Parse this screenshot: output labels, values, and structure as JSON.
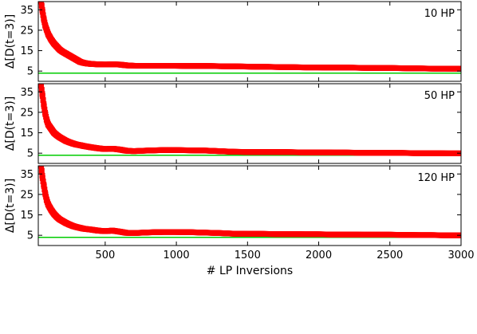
{
  "chart_data": [
    {
      "type": "scatter",
      "panel_label": "10 HP",
      "ylabel": "Δ[D(t=3)]",
      "xlabel": "",
      "xlim": [
        30,
        3000
      ],
      "ylim": [
        0,
        39
      ],
      "yticks": [
        5,
        15,
        25,
        35
      ],
      "xticks": [
        500,
        1000,
        1500,
        2000,
        2500,
        3000
      ],
      "show_x_tick_labels": false,
      "grid": false,
      "series": [
        {
          "color": "#ff0000",
          "x": [
            50,
            60,
            70,
            80,
            90,
            100,
            120,
            140,
            160,
            180,
            200,
            225,
            250,
            275,
            300,
            325,
            350,
            375,
            400,
            450,
            500,
            550,
            600,
            650,
            700,
            800,
            900,
            1000,
            1100,
            1200,
            1300,
            1400,
            1500,
            1600,
            1700,
            1800,
            1900,
            2000,
            2100,
            2200,
            2300,
            2400,
            2500,
            2600,
            2700,
            2800,
            2900,
            3000
          ],
          "y": [
            39,
            34,
            30,
            27,
            25,
            23,
            20.5,
            18.5,
            17,
            15.5,
            14.5,
            13.5,
            12.5,
            11.5,
            10.5,
            9.5,
            9,
            8.7,
            8.5,
            8.3,
            8.2,
            8.3,
            8.2,
            7.8,
            7.6,
            7.6,
            7.6,
            7.6,
            7.5,
            7.5,
            7.4,
            7.3,
            7.2,
            7.1,
            7.0,
            6.9,
            6.8,
            6.8,
            6.7,
            6.7,
            6.6,
            6.5,
            6.5,
            6.4,
            6.3,
            6.2,
            6.2,
            6.1
          ]
        },
        {
          "color": "#00cc00",
          "x": [
            30,
            3000
          ],
          "y": [
            4,
            4
          ]
        }
      ]
    },
    {
      "type": "scatter",
      "panel_label": "50 HP",
      "ylabel": "Δ[D(t=3)]",
      "xlabel": "",
      "xlim": [
        30,
        3000
      ],
      "ylim": [
        0,
        39
      ],
      "yticks": [
        5,
        15,
        25,
        35
      ],
      "xticks": [
        500,
        1000,
        1500,
        2000,
        2500,
        3000
      ],
      "show_x_tick_labels": false,
      "grid": false,
      "series": [
        {
          "color": "#ff0000",
          "x": [
            50,
            60,
            70,
            80,
            90,
            100,
            120,
            140,
            160,
            180,
            200,
            225,
            250,
            275,
            300,
            325,
            350,
            375,
            400,
            450,
            500,
            550,
            600,
            650,
            700,
            800,
            900,
            1000,
            1100,
            1200,
            1300,
            1400,
            1500,
            1600,
            1700,
            1800,
            1900,
            2000,
            2100,
            2200,
            2300,
            2400,
            2500,
            2600,
            2700,
            2800,
            2900,
            3000
          ],
          "y": [
            38,
            33,
            28,
            24,
            21,
            19,
            17,
            15,
            13.8,
            12.8,
            12,
            11,
            10.3,
            9.7,
            9.2,
            8.9,
            8.5,
            8.2,
            7.9,
            7.4,
            7.0,
            7.2,
            6.8,
            6.2,
            6.0,
            6.3,
            6.5,
            6.5,
            6.4,
            6.3,
            6.0,
            5.7,
            5.6,
            5.6,
            5.6,
            5.5,
            5.4,
            5.4,
            5.3,
            5.3,
            5.2,
            5.2,
            5.2,
            5.1,
            5.0,
            5.0,
            4.9,
            4.9
          ]
        },
        {
          "color": "#00cc00",
          "x": [
            30,
            3000
          ],
          "y": [
            4,
            4
          ]
        }
      ]
    },
    {
      "type": "scatter",
      "panel_label": "120 HP",
      "ylabel": "Δ[D(t=3)]",
      "xlabel": "# LP Inversions",
      "xlim": [
        30,
        3000
      ],
      "ylim": [
        0,
        39
      ],
      "yticks": [
        5,
        15,
        25,
        35
      ],
      "xticks": [
        500,
        1000,
        1500,
        2000,
        2500,
        3000
      ],
      "show_x_tick_labels": true,
      "grid": false,
      "series": [
        {
          "color": "#ff0000",
          "x": [
            50,
            60,
            70,
            80,
            90,
            100,
            120,
            140,
            160,
            180,
            200,
            225,
            250,
            275,
            300,
            325,
            350,
            375,
            400,
            450,
            500,
            550,
            600,
            650,
            700,
            800,
            900,
            1000,
            1100,
            1200,
            1300,
            1400,
            1500,
            1600,
            1700,
            1800,
            1900,
            2000,
            2100,
            2200,
            2300,
            2400,
            2500,
            2600,
            2700,
            2800,
            2900,
            3000
          ],
          "y": [
            39,
            33,
            29,
            25,
            22,
            20,
            17.5,
            15.5,
            14,
            12.8,
            12,
            11,
            10.2,
            9.5,
            9.0,
            8.6,
            8.2,
            8.0,
            7.8,
            7.3,
            7.0,
            7.3,
            6.8,
            6.2,
            6.1,
            6.4,
            6.6,
            6.6,
            6.5,
            6.3,
            6.1,
            5.8,
            5.7,
            5.7,
            5.6,
            5.6,
            5.5,
            5.5,
            5.4,
            5.4,
            5.3,
            5.3,
            5.3,
            5.2,
            5.1,
            5.1,
            5.0,
            5.0
          ]
        },
        {
          "color": "#00cc00",
          "x": [
            30,
            3000
          ],
          "y": [
            4,
            4
          ]
        }
      ]
    }
  ]
}
